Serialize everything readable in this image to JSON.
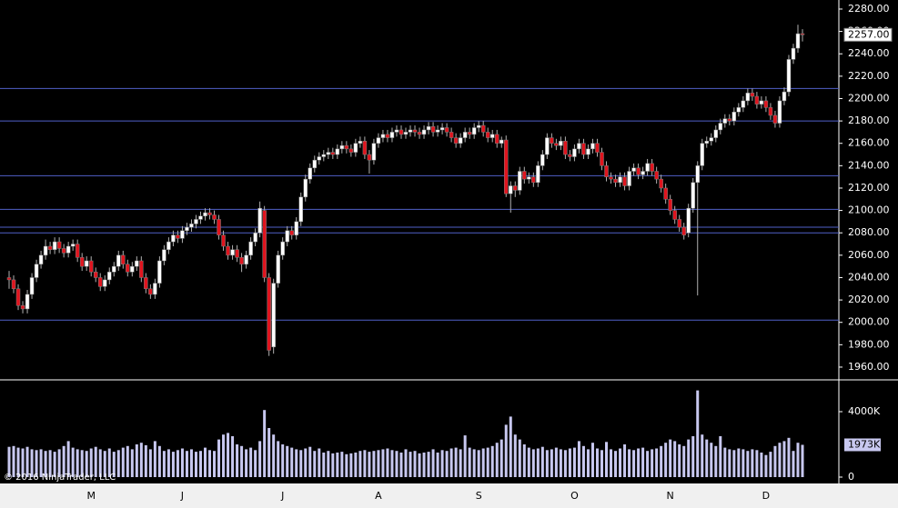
{
  "chart_data": {
    "type": "candlestick",
    "categories": [
      null,
      null,
      null,
      null,
      null,
      null,
      null,
      null,
      null,
      null,
      null,
      null,
      null,
      null,
      null,
      null,
      null,
      null,
      "M",
      null,
      null,
      null,
      null,
      null,
      null,
      null,
      null,
      null,
      null,
      null,
      null,
      null,
      null,
      null,
      null,
      null,
      null,
      null,
      "J",
      null,
      null,
      null,
      null,
      null,
      null,
      null,
      null,
      null,
      null,
      null,
      null,
      null,
      null,
      null,
      null,
      null,
      null,
      null,
      null,
      null,
      "J",
      null,
      null,
      null,
      null,
      null,
      null,
      null,
      null,
      null,
      null,
      null,
      null,
      null,
      null,
      null,
      null,
      null,
      null,
      null,
      null,
      "A",
      null,
      null,
      null,
      null,
      null,
      null,
      null,
      null,
      null,
      null,
      null,
      null,
      null,
      null,
      null,
      null,
      null,
      null,
      null,
      null,
      null,
      "S",
      null,
      null,
      null,
      null,
      null,
      null,
      null,
      null,
      null,
      null,
      null,
      null,
      null,
      null,
      null,
      null,
      null,
      null,
      null,
      null,
      "O",
      null,
      null,
      null,
      null,
      null,
      null,
      null,
      null,
      null,
      null,
      null,
      null,
      null,
      null,
      null,
      null,
      null,
      null,
      null,
      null,
      "N",
      null,
      null,
      null,
      null,
      null,
      null,
      null,
      null,
      null,
      null,
      null,
      null,
      null,
      null,
      null,
      null,
      null,
      null,
      null,
      null,
      "D",
      null,
      null,
      null,
      null,
      null,
      null,
      null,
      null
    ],
    "ohlc": [
      [
        2040,
        2046,
        2030,
        2038
      ],
      [
        2038,
        2042,
        2026,
        2030
      ],
      [
        2030,
        2034,
        2011,
        2015
      ],
      [
        2015,
        2019,
        2008,
        2012
      ],
      [
        2012,
        2029,
        2008,
        2025
      ],
      [
        2025,
        2044,
        2021,
        2040
      ],
      [
        2040,
        2056,
        2036,
        2052
      ],
      [
        2052,
        2064,
        2048,
        2060
      ],
      [
        2060,
        2074,
        2056,
        2068
      ],
      [
        2068,
        2072,
        2061,
        2065
      ],
      [
        2065,
        2076,
        2061,
        2072
      ],
      [
        2072,
        2076,
        2062,
        2066
      ],
      [
        2066,
        2070,
        2058,
        2062
      ],
      [
        2062,
        2072,
        2058,
        2068
      ],
      [
        2068,
        2074,
        2064,
        2070
      ],
      [
        2070,
        2074,
        2054,
        2058
      ],
      [
        2058,
        2062,
        2046,
        2050
      ],
      [
        2050,
        2059,
        2046,
        2055
      ],
      [
        2055,
        2059,
        2041,
        2045
      ],
      [
        2045,
        2049,
        2036,
        2040
      ],
      [
        2040,
        2044,
        2028,
        2032
      ],
      [
        2032,
        2042,
        2028,
        2038
      ],
      [
        2038,
        2049,
        2034,
        2045
      ],
      [
        2045,
        2054,
        2041,
        2050
      ],
      [
        2050,
        2064,
        2046,
        2060
      ],
      [
        2060,
        2064,
        2048,
        2052
      ],
      [
        2052,
        2056,
        2041,
        2045
      ],
      [
        2045,
        2054,
        2041,
        2050
      ],
      [
        2050,
        2059,
        2046,
        2055
      ],
      [
        2055,
        2059,
        2036,
        2040
      ],
      [
        2040,
        2044,
        2026,
        2030
      ],
      [
        2030,
        2034,
        2021,
        2025
      ],
      [
        2025,
        2039,
        2021,
        2035
      ],
      [
        2035,
        2059,
        2031,
        2055
      ],
      [
        2055,
        2069,
        2051,
        2065
      ],
      [
        2065,
        2076,
        2061,
        2072
      ],
      [
        2072,
        2082,
        2068,
        2078
      ],
      [
        2078,
        2082,
        2071,
        2075
      ],
      [
        2075,
        2086,
        2071,
        2082
      ],
      [
        2082,
        2089,
        2078,
        2085
      ],
      [
        2085,
        2092,
        2081,
        2088
      ],
      [
        2088,
        2096,
        2084,
        2092
      ],
      [
        2092,
        2099,
        2088,
        2095
      ],
      [
        2095,
        2102,
        2091,
        2098
      ],
      [
        2098,
        2102,
        2092,
        2096
      ],
      [
        2096,
        2100,
        2088,
        2092
      ],
      [
        2092,
        2096,
        2074,
        2078
      ],
      [
        2078,
        2082,
        2064,
        2068
      ],
      [
        2068,
        2072,
        2056,
        2060
      ],
      [
        2060,
        2069,
        2056,
        2065
      ],
      [
        2065,
        2069,
        2054,
        2058
      ],
      [
        2058,
        2062,
        2045,
        2052
      ],
      [
        2052,
        2064,
        2048,
        2060
      ],
      [
        2060,
        2076,
        2056,
        2072
      ],
      [
        2072,
        2084,
        2068,
        2080
      ],
      [
        2080,
        2108,
        2076,
        2102
      ],
      [
        2100,
        2104,
        2036,
        2040
      ],
      [
        2040,
        2044,
        1970,
        1975
      ],
      [
        1978,
        2039,
        1972,
        2035
      ],
      [
        2035,
        2064,
        2031,
        2060
      ],
      [
        2060,
        2076,
        2056,
        2072
      ],
      [
        2072,
        2086,
        2068,
        2082
      ],
      [
        2082,
        2086,
        2074,
        2078
      ],
      [
        2078,
        2094,
        2074,
        2090
      ],
      [
        2090,
        2116,
        2086,
        2112
      ],
      [
        2112,
        2132,
        2108,
        2128
      ],
      [
        2128,
        2142,
        2124,
        2138
      ],
      [
        2138,
        2149,
        2134,
        2145
      ],
      [
        2145,
        2152,
        2141,
        2148
      ],
      [
        2148,
        2154,
        2144,
        2150
      ],
      [
        2150,
        2156,
        2146,
        2152
      ],
      [
        2152,
        2156,
        2146,
        2150
      ],
      [
        2150,
        2159,
        2146,
        2155
      ],
      [
        2155,
        2162,
        2151,
        2158
      ],
      [
        2158,
        2162,
        2151,
        2155
      ],
      [
        2155,
        2159,
        2148,
        2152
      ],
      [
        2152,
        2164,
        2148,
        2160
      ],
      [
        2160,
        2166,
        2156,
        2162
      ],
      [
        2162,
        2166,
        2146,
        2150
      ],
      [
        2150,
        2154,
        2133,
        2145
      ],
      [
        2145,
        2164,
        2141,
        2160
      ],
      [
        2160,
        2169,
        2156,
        2165
      ],
      [
        2165,
        2172,
        2161,
        2168
      ],
      [
        2168,
        2172,
        2161,
        2165
      ],
      [
        2165,
        2174,
        2161,
        2170
      ],
      [
        2170,
        2176,
        2166,
        2172
      ],
      [
        2172,
        2176,
        2164,
        2168
      ],
      [
        2168,
        2174,
        2164,
        2170
      ],
      [
        2170,
        2176,
        2166,
        2172
      ],
      [
        2172,
        2176,
        2166,
        2170
      ],
      [
        2170,
        2174,
        2164,
        2168
      ],
      [
        2168,
        2176,
        2164,
        2172
      ],
      [
        2172,
        2179,
        2168,
        2175
      ],
      [
        2175,
        2179,
        2166,
        2170
      ],
      [
        2170,
        2176,
        2166,
        2172
      ],
      [
        2172,
        2178,
        2168,
        2174
      ],
      [
        2174,
        2178,
        2166,
        2170
      ],
      [
        2170,
        2174,
        2161,
        2165
      ],
      [
        2165,
        2169,
        2156,
        2160
      ],
      [
        2160,
        2169,
        2156,
        2165
      ],
      [
        2165,
        2174,
        2161,
        2170
      ],
      [
        2170,
        2174,
        2164,
        2168
      ],
      [
        2168,
        2178,
        2164,
        2174
      ],
      [
        2174,
        2180,
        2170,
        2176
      ],
      [
        2176,
        2180,
        2166,
        2170
      ],
      [
        2170,
        2174,
        2161,
        2165
      ],
      [
        2165,
        2172,
        2161,
        2168
      ],
      [
        2168,
        2172,
        2156,
        2160
      ],
      [
        2160,
        2166,
        2156,
        2163
      ],
      [
        2163,
        2167,
        2112,
        2115
      ],
      [
        2115,
        2126,
        2098,
        2122
      ],
      [
        2122,
        2126,
        2112,
        2118
      ],
      [
        2118,
        2139,
        2114,
        2135
      ],
      [
        2135,
        2139,
        2124,
        2128
      ],
      [
        2128,
        2134,
        2124,
        2130
      ],
      [
        2130,
        2134,
        2121,
        2125
      ],
      [
        2125,
        2144,
        2121,
        2140
      ],
      [
        2140,
        2154,
        2136,
        2150
      ],
      [
        2150,
        2169,
        2146,
        2165
      ],
      [
        2165,
        2169,
        2156,
        2160
      ],
      [
        2160,
        2164,
        2154,
        2158
      ],
      [
        2158,
        2166,
        2154,
        2162
      ],
      [
        2162,
        2166,
        2146,
        2150
      ],
      [
        2150,
        2154,
        2144,
        2148
      ],
      [
        2148,
        2159,
        2144,
        2155
      ],
      [
        2155,
        2164,
        2151,
        2160
      ],
      [
        2160,
        2164,
        2146,
        2150
      ],
      [
        2150,
        2159,
        2146,
        2155
      ],
      [
        2155,
        2164,
        2151,
        2160
      ],
      [
        2160,
        2164,
        2148,
        2152
      ],
      [
        2152,
        2156,
        2136,
        2140
      ],
      [
        2140,
        2144,
        2126,
        2130
      ],
      [
        2130,
        2134,
        2124,
        2128
      ],
      [
        2128,
        2132,
        2121,
        2125
      ],
      [
        2125,
        2134,
        2121,
        2130
      ],
      [
        2130,
        2134,
        2118,
        2122
      ],
      [
        2122,
        2139,
        2118,
        2135
      ],
      [
        2135,
        2142,
        2131,
        2138
      ],
      [
        2138,
        2142,
        2128,
        2132
      ],
      [
        2132,
        2139,
        2128,
        2135
      ],
      [
        2135,
        2146,
        2131,
        2142
      ],
      [
        2142,
        2146,
        2131,
        2135
      ],
      [
        2135,
        2139,
        2124,
        2128
      ],
      [
        2128,
        2132,
        2116,
        2120
      ],
      [
        2120,
        2124,
        2106,
        2110
      ],
      [
        2110,
        2114,
        2096,
        2100
      ],
      [
        2100,
        2104,
        2088,
        2092
      ],
      [
        2092,
        2096,
        2081,
        2085
      ],
      [
        2085,
        2089,
        2074,
        2078
      ],
      [
        2080,
        2106,
        2076,
        2102
      ],
      [
        2102,
        2129,
        2098,
        2125
      ],
      [
        2125,
        2144,
        2024,
        2140
      ],
      [
        2140,
        2164,
        2136,
        2160
      ],
      [
        2160,
        2166,
        2156,
        2162
      ],
      [
        2162,
        2169,
        2158,
        2165
      ],
      [
        2165,
        2176,
        2161,
        2172
      ],
      [
        2172,
        2182,
        2168,
        2178
      ],
      [
        2178,
        2186,
        2174,
        2182
      ],
      [
        2182,
        2186,
        2176,
        2180
      ],
      [
        2180,
        2192,
        2176,
        2188
      ],
      [
        2188,
        2196,
        2184,
        2192
      ],
      [
        2192,
        2202,
        2188,
        2198
      ],
      [
        2198,
        2209,
        2194,
        2205
      ],
      [
        2205,
        2209,
        2198,
        2202
      ],
      [
        2202,
        2206,
        2191,
        2195
      ],
      [
        2195,
        2202,
        2191,
        2198
      ],
      [
        2198,
        2202,
        2188,
        2192
      ],
      [
        2192,
        2196,
        2181,
        2185
      ],
      [
        2185,
        2189,
        2174,
        2178
      ],
      [
        2178,
        2202,
        2174,
        2198
      ],
      [
        2198,
        2210,
        2194,
        2206
      ],
      [
        2206,
        2239,
        2202,
        2235
      ],
      [
        2235,
        2249,
        2231,
        2245
      ],
      [
        2245,
        2266,
        2241,
        2258
      ],
      [
        2258,
        2262,
        2251,
        2257
      ]
    ],
    "color_up": "#ffffff",
    "color_down": "#e0141e",
    "ylim": [
      1948.6,
      2288.1
    ],
    "yticks": [
      {
        "value": 1960,
        "label": "1960.00"
      },
      {
        "value": 1980,
        "label": "1980.00"
      },
      {
        "value": 2000,
        "label": "2000.00"
      },
      {
        "value": 2020,
        "label": "2020.00"
      },
      {
        "value": 2040,
        "label": "2040.00"
      },
      {
        "value": 2060,
        "label": "2060.00"
      },
      {
        "value": 2080,
        "label": "2080.00"
      },
      {
        "value": 2100,
        "label": "2100.00"
      },
      {
        "value": 2120,
        "label": "2120.00"
      },
      {
        "value": 2140,
        "label": "2140.00"
      },
      {
        "value": 2160,
        "label": "2160.00"
      },
      {
        "value": 2180,
        "label": "2180.00"
      },
      {
        "value": 2200,
        "label": "2200.00"
      },
      {
        "value": 2220,
        "label": "2220.00"
      },
      {
        "value": 2240,
        "label": "2240.00"
      },
      {
        "value": 2260,
        "label": "2260.00"
      },
      {
        "value": 2280,
        "label": "2280.00"
      }
    ],
    "levels": [
      2209,
      2180,
      2131,
      2101,
      2085,
      2080,
      2002
    ],
    "level_color": "#5060c8",
    "last_price_label": "2257.00",
    "volume": {
      "values": [
        1850,
        1900,
        1800,
        1750,
        1850,
        1700,
        1650,
        1700,
        1600,
        1650,
        1550,
        1700,
        1900,
        2200,
        1800,
        1700,
        1650,
        1600,
        1750,
        1850,
        1700,
        1600,
        1750,
        1550,
        1650,
        1800,
        1900,
        1700,
        2000,
        2100,
        1950,
        1700,
        2200,
        1900,
        1600,
        1700,
        1550,
        1650,
        1750,
        1600,
        1700,
        1550,
        1600,
        1800,
        1650,
        1600,
        2300,
        2600,
        2700,
        2500,
        2000,
        1900,
        1700,
        1800,
        1650,
        2200,
        4100,
        3000,
        2600,
        2200,
        2000,
        1900,
        1800,
        1700,
        1650,
        1750,
        1850,
        1600,
        1750,
        1500,
        1600,
        1450,
        1500,
        1550,
        1400,
        1450,
        1500,
        1600,
        1650,
        1550,
        1600,
        1650,
        1700,
        1750,
        1650,
        1600,
        1500,
        1700,
        1550,
        1600,
        1450,
        1500,
        1550,
        1700,
        1500,
        1650,
        1600,
        1750,
        1800,
        1700,
        2550,
        1800,
        1700,
        1650,
        1750,
        1800,
        1900,
        2100,
        2300,
        3200,
        3700,
        2600,
        2300,
        2000,
        1800,
        1700,
        1750,
        1850,
        1650,
        1700,
        1800,
        1700,
        1650,
        1750,
        1800,
        2200,
        1900,
        1700,
        2100,
        1750,
        1650,
        2150,
        1700,
        1600,
        1750,
        2000,
        1700,
        1650,
        1750,
        1800,
        1600,
        1700,
        1750,
        1900,
        2100,
        2300,
        2200,
        2000,
        1900,
        2300,
        2500,
        5300,
        2600,
        2300,
        2100,
        1900,
        2500,
        1800,
        1700,
        1650,
        1750,
        1700,
        1600,
        1700,
        1650,
        1500,
        1350,
        1550,
        1900,
        2100,
        2200,
        2400,
        1600,
        2100,
        1973
      ],
      "color": "#c8c8f0",
      "ylim": [
        -278,
        5889
      ],
      "yticks": [
        {
          "value": 4000,
          "label": "4000K"
        },
        0
      ],
      "last_label": "1973K"
    },
    "copyright": "© 2016 NinjaTrader, LLC"
  }
}
